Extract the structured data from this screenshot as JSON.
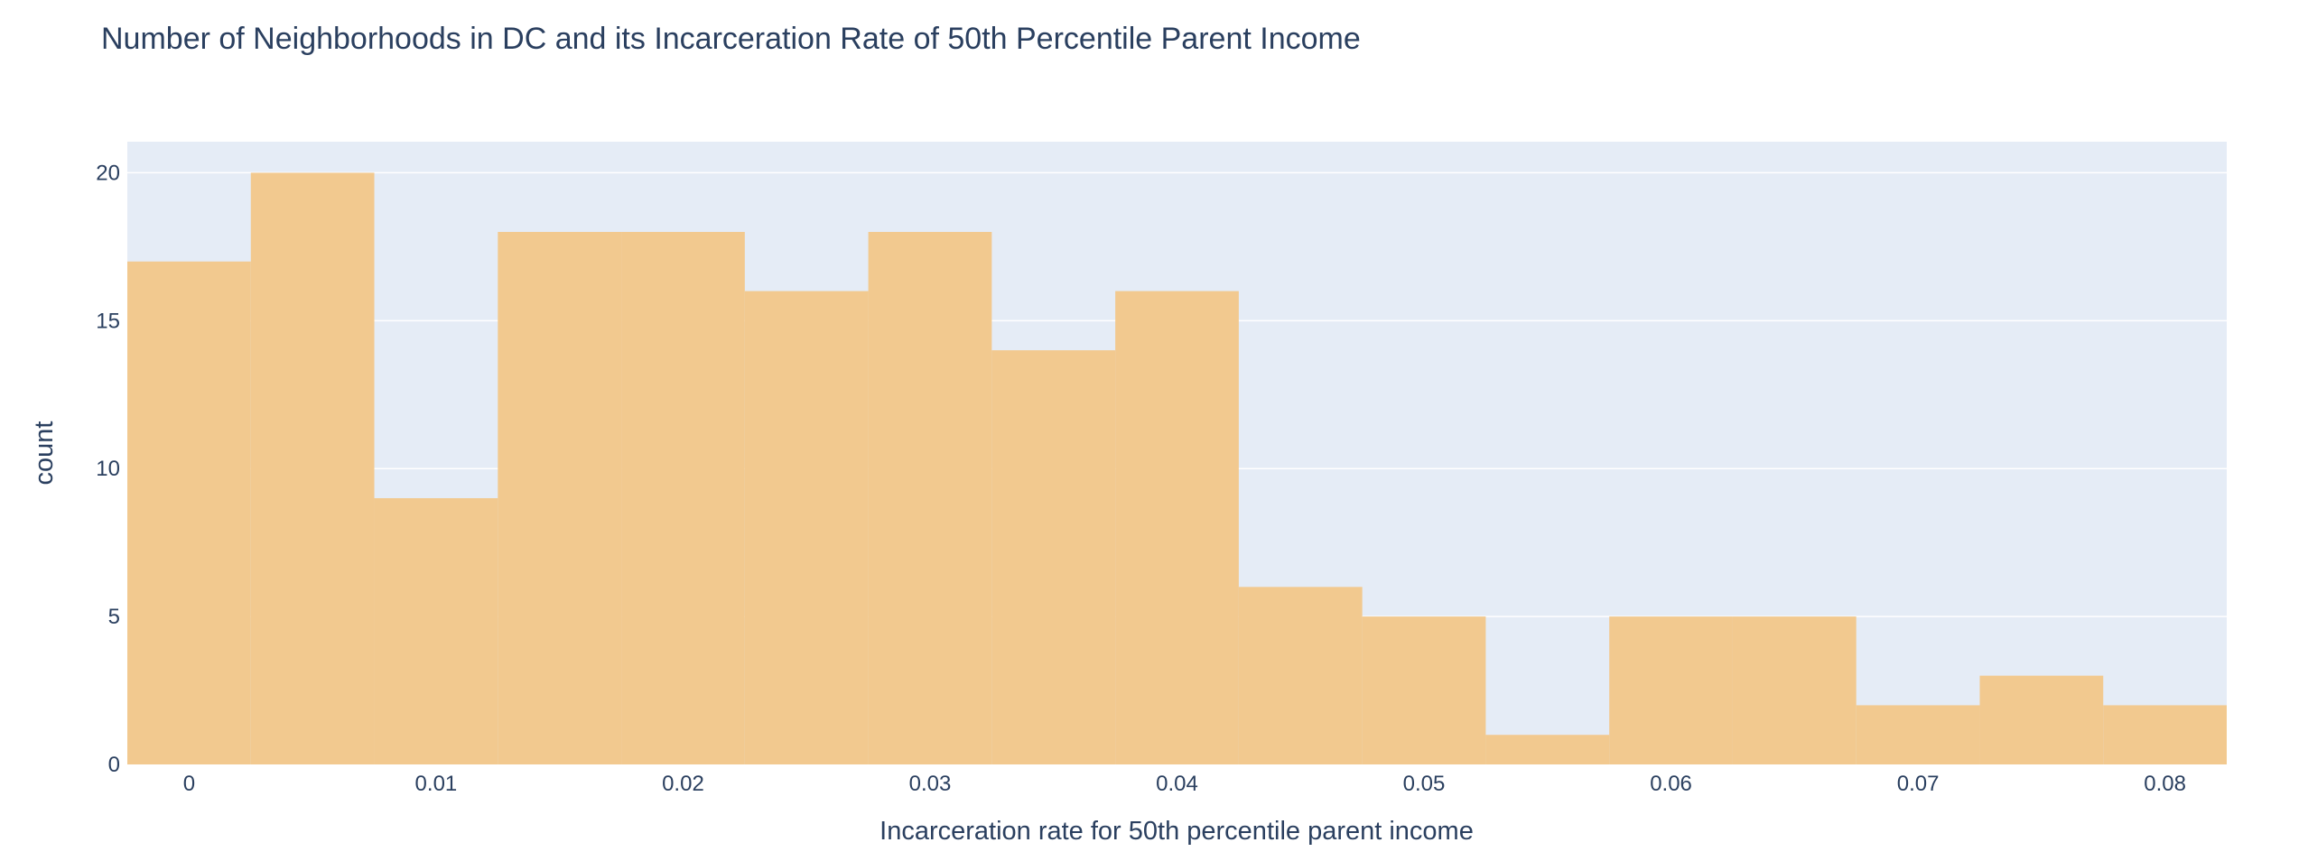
{
  "chart_data": {
    "type": "bar",
    "title": "Number of Neighborhoods in DC and its Incarceration Rate of 50th Percentile Parent Income",
    "xlabel": "Incarceration rate for 50th percentile parent income",
    "ylabel": "count",
    "bin_width": 0.005,
    "bins": [
      {
        "start": -0.0025,
        "end": 0.0025,
        "count": 17
      },
      {
        "start": 0.0025,
        "end": 0.0075,
        "count": 20
      },
      {
        "start": 0.0075,
        "end": 0.0125,
        "count": 9
      },
      {
        "start": 0.0125,
        "end": 0.0175,
        "count": 18
      },
      {
        "start": 0.0175,
        "end": 0.0225,
        "count": 18
      },
      {
        "start": 0.0225,
        "end": 0.0275,
        "count": 16
      },
      {
        "start": 0.0275,
        "end": 0.0325,
        "count": 18
      },
      {
        "start": 0.0325,
        "end": 0.0375,
        "count": 14
      },
      {
        "start": 0.0375,
        "end": 0.0425,
        "count": 16
      },
      {
        "start": 0.0425,
        "end": 0.0475,
        "count": 6
      },
      {
        "start": 0.0475,
        "end": 0.0525,
        "count": 5
      },
      {
        "start": 0.0525,
        "end": 0.0575,
        "count": 1
      },
      {
        "start": 0.0575,
        "end": 0.0625,
        "count": 5
      },
      {
        "start": 0.0625,
        "end": 0.0675,
        "count": 5
      },
      {
        "start": 0.0675,
        "end": 0.0725,
        "count": 2
      },
      {
        "start": 0.0725,
        "end": 0.0775,
        "count": 3
      },
      {
        "start": 0.0775,
        "end": 0.0825,
        "count": 2
      }
    ],
    "xlim": [
      -0.0025,
      0.0825
    ],
    "ylim": [
      0,
      21.05
    ],
    "x_ticks": [
      {
        "value": 0,
        "label": "0"
      },
      {
        "value": 0.01,
        "label": "0.01"
      },
      {
        "value": 0.02,
        "label": "0.02"
      },
      {
        "value": 0.03,
        "label": "0.03"
      },
      {
        "value": 0.04,
        "label": "0.04"
      },
      {
        "value": 0.05,
        "label": "0.05"
      },
      {
        "value": 0.06,
        "label": "0.06"
      },
      {
        "value": 0.07,
        "label": "0.07"
      },
      {
        "value": 0.08,
        "label": "0.08"
      }
    ],
    "y_ticks": [
      {
        "value": 0,
        "label": "0"
      },
      {
        "value": 5,
        "label": "5"
      },
      {
        "value": 10,
        "label": "10"
      },
      {
        "value": 15,
        "label": "15"
      },
      {
        "value": 20,
        "label": "20"
      }
    ],
    "grid": true,
    "legend": "none",
    "colors": {
      "bar": "#f2c98f",
      "plot_background": "#e5ecf6",
      "grid": "#ffffff",
      "text": "#2a3f5f"
    }
  }
}
